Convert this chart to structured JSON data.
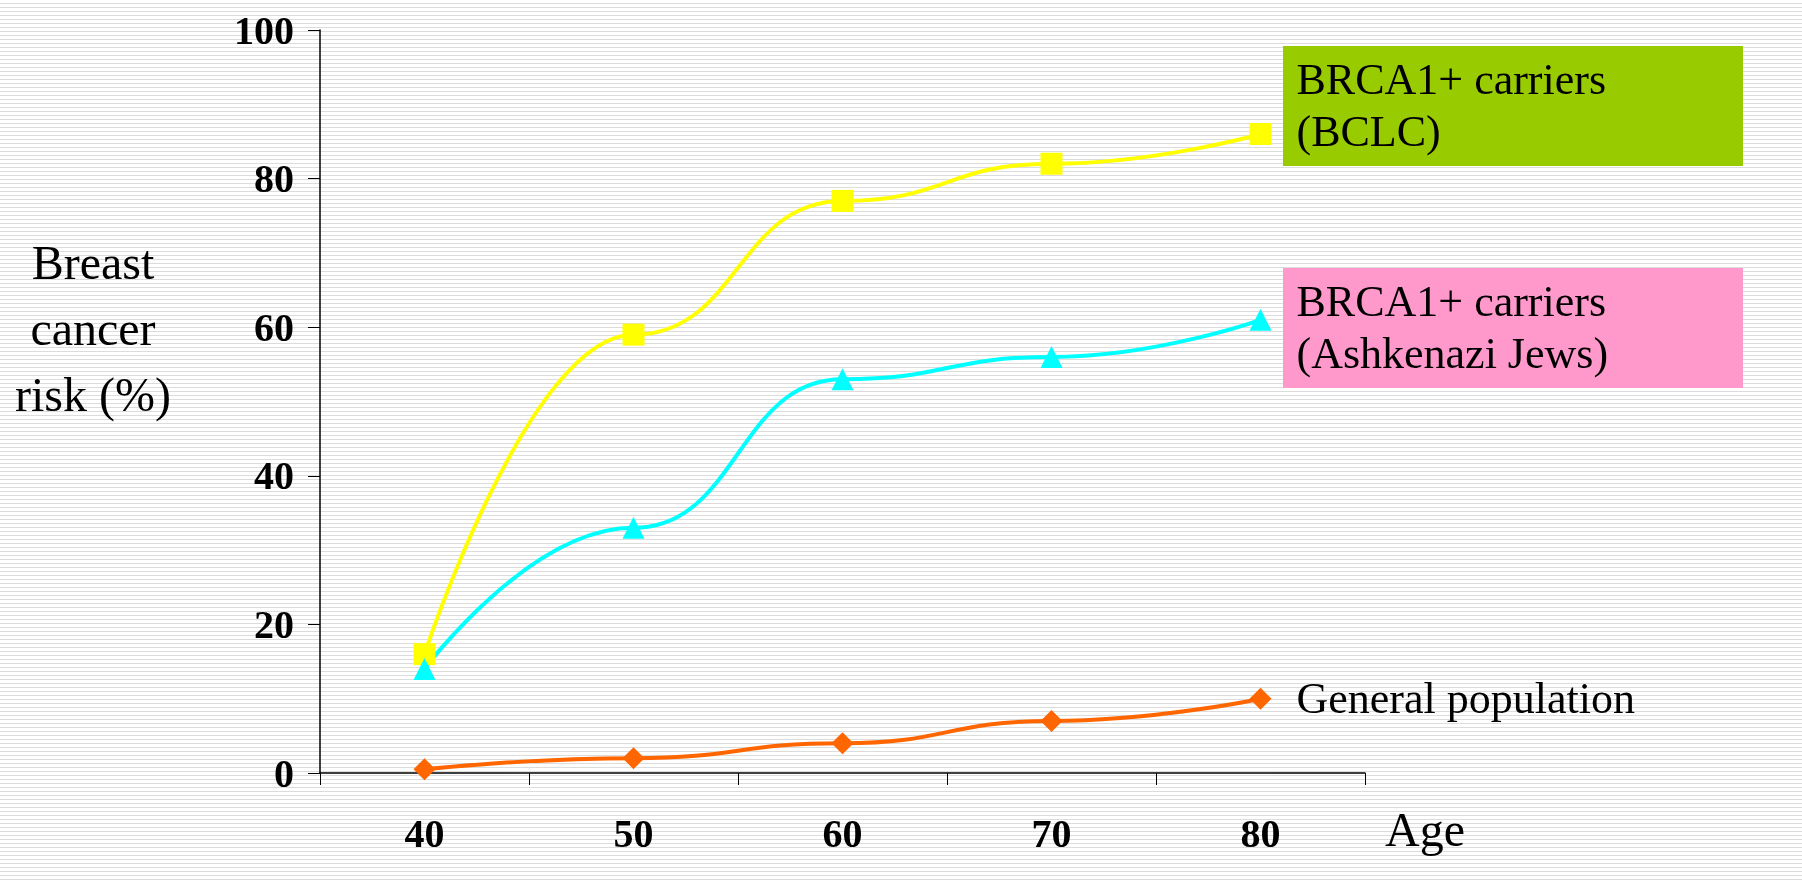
{
  "chart_data": {
    "type": "line",
    "xlabel": "Age",
    "ylabel": "Breast cancer risk (%)",
    "categories": [
      "40",
      "50",
      "60",
      "70",
      "80"
    ],
    "ylim": [
      0,
      100
    ],
    "yticks": [
      0,
      20,
      40,
      60,
      80,
      100
    ],
    "grid": false,
    "legend": false,
    "line_style": "solid",
    "series": [
      {
        "name": "BRCA1+ carriers (BCLC)",
        "color": "#ffff00",
        "marker": "square",
        "values": [
          16,
          59,
          77,
          82,
          86
        ]
      },
      {
        "name": "BRCA1+ carriers (Ashkenazi Jews)",
        "color": "#00ffff",
        "marker": "triangle",
        "values": [
          14,
          33,
          53,
          56,
          61
        ]
      },
      {
        "name": "General population",
        "color": "#ff6600",
        "marker": "diamond",
        "values": [
          0.5,
          2,
          4,
          7,
          10
        ]
      }
    ]
  }
}
